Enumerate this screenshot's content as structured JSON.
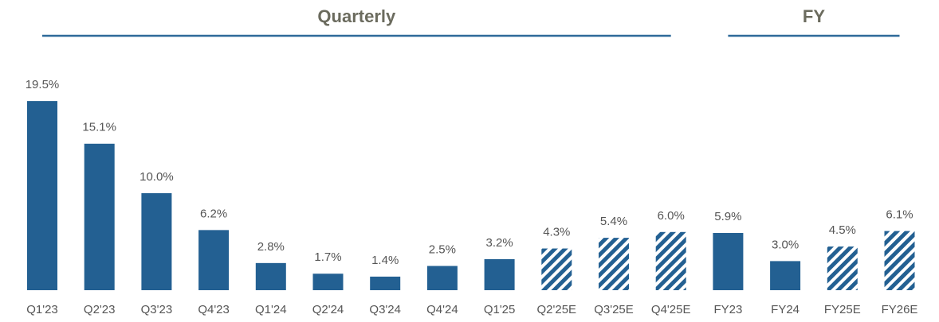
{
  "chart_data": {
    "type": "bar",
    "color": "#236092",
    "ylim": [
      0,
      20
    ],
    "groups": [
      {
        "label": "Quarterly",
        "categories": [
          "Q1'23",
          "Q2'23",
          "Q3'23",
          "Q4'23",
          "Q1'24",
          "Q2'24",
          "Q3'24",
          "Q4'24",
          "Q1'25",
          "Q2'25E",
          "Q3'25E",
          "Q4'25E"
        ],
        "values": [
          19.5,
          15.1,
          10.0,
          6.2,
          2.8,
          1.7,
          1.4,
          2.5,
          3.2,
          4.3,
          5.4,
          6.0
        ],
        "value_labels": [
          "19.5%",
          "15.1%",
          "10.0%",
          "6.2%",
          "2.8%",
          "1.7%",
          "1.4%",
          "2.5%",
          "3.2%",
          "4.3%",
          "5.4%",
          "6.0%"
        ],
        "hatched": [
          false,
          false,
          false,
          false,
          false,
          false,
          false,
          false,
          false,
          true,
          true,
          true
        ]
      },
      {
        "label": "FY",
        "categories": [
          "FY23",
          "FY24",
          "FY25E",
          "FY26E"
        ],
        "values": [
          5.9,
          3.0,
          4.5,
          6.1
        ],
        "value_labels": [
          "5.9%",
          "3.0%",
          "4.5%",
          "6.1%"
        ],
        "hatched": [
          false,
          false,
          true,
          true
        ]
      }
    ]
  }
}
